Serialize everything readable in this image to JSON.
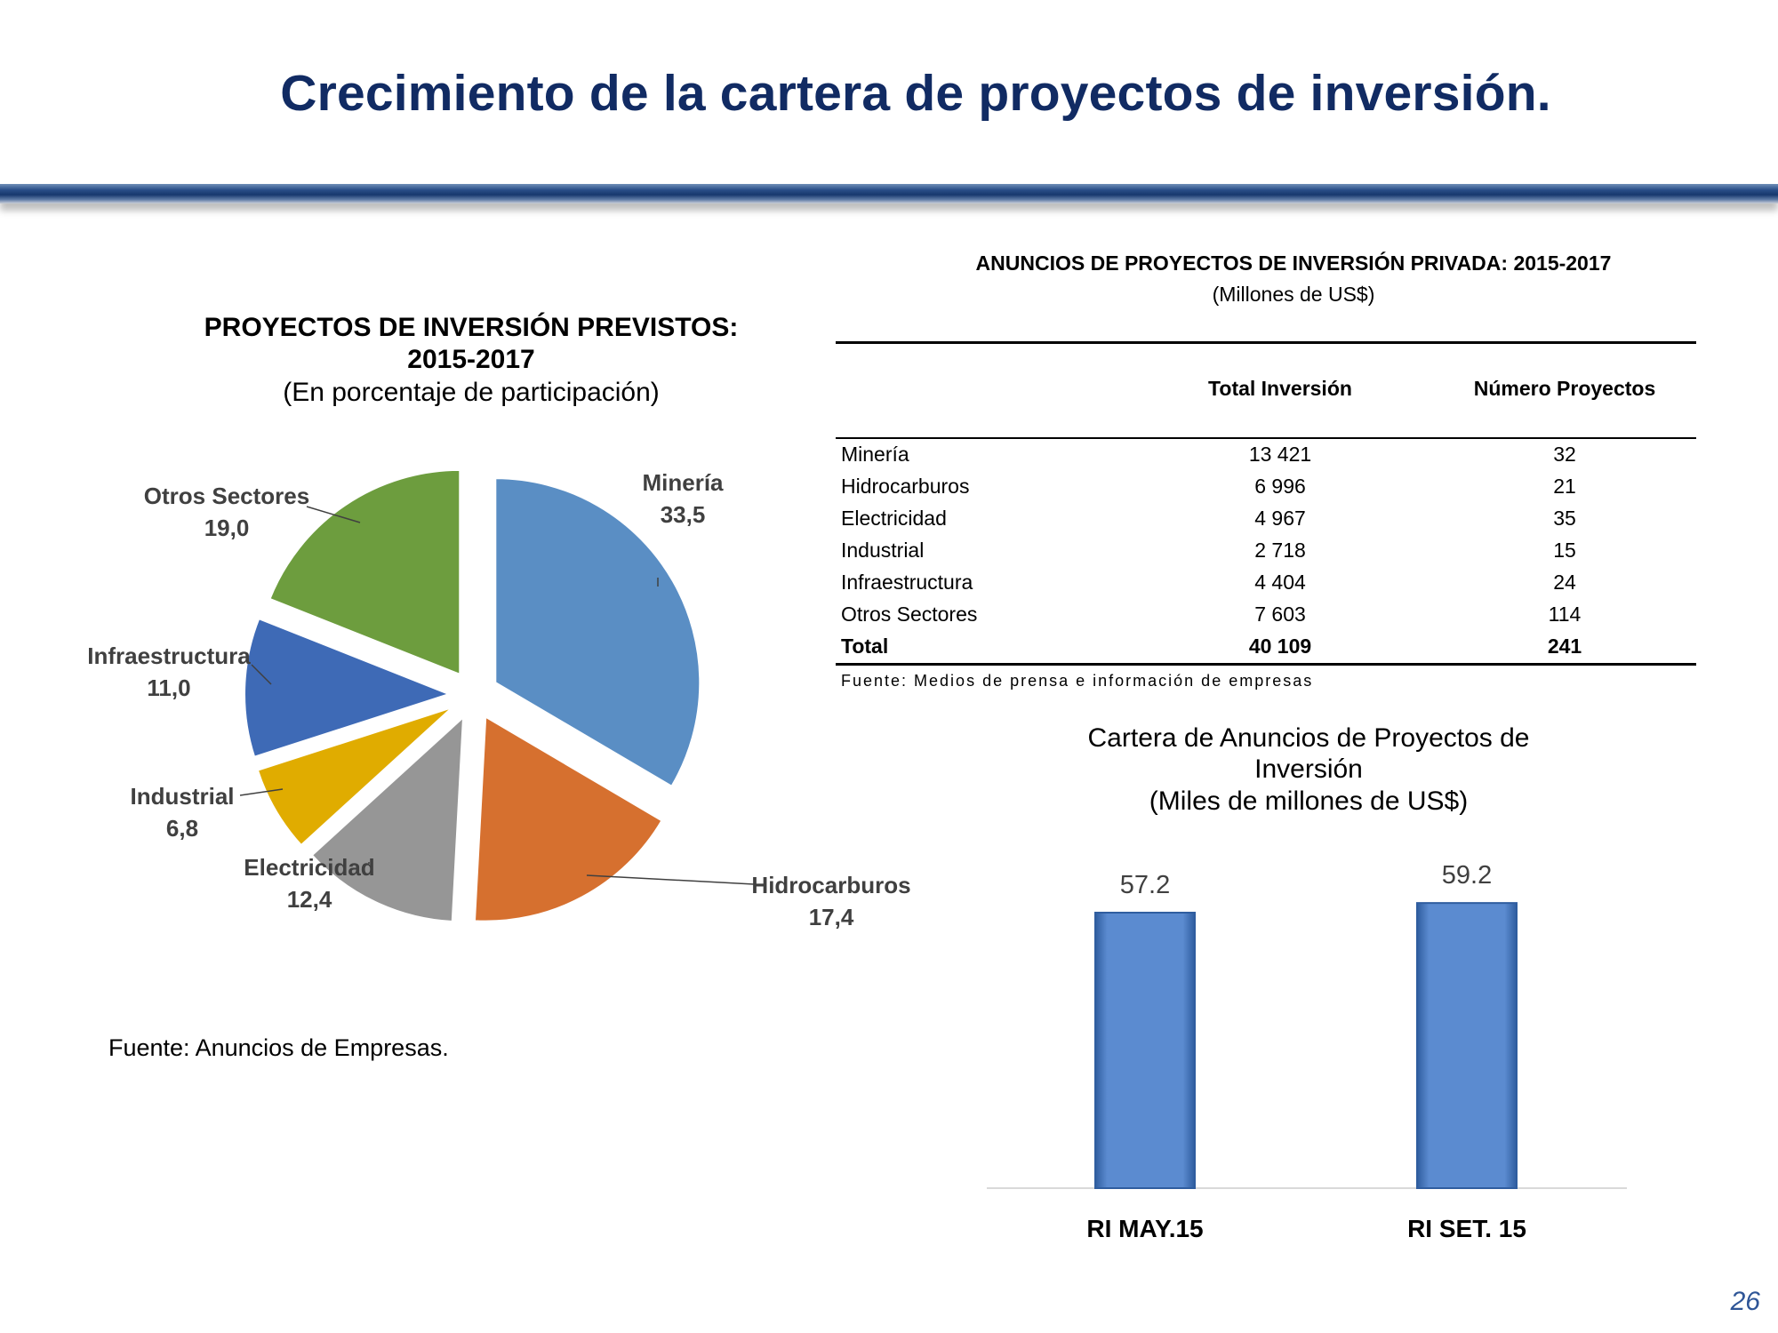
{
  "slide": {
    "title": "Crecimiento de la cartera de proyectos de inversión.",
    "page_number": "26"
  },
  "pie": {
    "title_line1": "PROYECTOS DE INVERSIÓN PREVISTOS:",
    "title_line2": "2015-2017",
    "subtitle": "(En porcentaje de participación)",
    "source": "Fuente: Anuncios de Empresas."
  },
  "table": {
    "title": "ANUNCIOS DE PROYECTOS DE INVERSIÓN PRIVADA: 2015-2017",
    "subtitle": "(Millones de US$)",
    "headers": [
      "",
      "Total Inversión",
      "Número  Proyectos"
    ],
    "rows": [
      [
        "Minería",
        "13 421",
        "32"
      ],
      [
        "Hidrocarburos",
        "6 996",
        "21"
      ],
      [
        "Electricidad",
        "4 967",
        "35"
      ],
      [
        "Industrial",
        "2 718",
        "15"
      ],
      [
        "Infraestructura",
        "4 404",
        "24"
      ],
      [
        "Otros Sectores",
        "7 603",
        "114"
      ]
    ],
    "total": [
      "Total",
      "40 109",
      "241"
    ],
    "source": "Fuente: Medios de prensa e información de empresas"
  },
  "bar": {
    "title_line1": "Cartera de Anuncios de Proyectos de",
    "title_line2": "Inversión",
    "subtitle": "(Miles de millones de US$)"
  },
  "chart_data": [
    {
      "type": "pie",
      "title": "PROYECTOS DE INVERSIÓN PREVISTOS: 2015-2017",
      "subtitle": "(En porcentaje de participación)",
      "slices": [
        {
          "label": "Minería",
          "value": 33.5,
          "value_label": "33,5",
          "color": "#5a8ec4"
        },
        {
          "label": "Hidrocarburos",
          "value": 17.4,
          "value_label": "17,4",
          "color": "#d6702f"
        },
        {
          "label": "Electricidad",
          "value": 12.4,
          "value_label": "12,4",
          "color": "#969696"
        },
        {
          "label": "Industrial",
          "value": 6.8,
          "value_label": "6,8",
          "color": "#e0ac00"
        },
        {
          "label": "Infraestructura",
          "value": 11.0,
          "value_label": "11,0",
          "color": "#3e6ab6"
        },
        {
          "label": "Otros Sectores",
          "value": 19.0,
          "value_label": "19,0",
          "color": "#6d9d3e"
        }
      ],
      "exploded": true
    },
    {
      "type": "bar",
      "title": "Cartera de Anuncios de Proyectos de Inversión",
      "subtitle": "(Miles de millones de US$)",
      "categories": [
        "RI MAY.15",
        "RI SET. 15"
      ],
      "values": [
        57.2,
        59.2
      ],
      "value_labels": [
        "57.2",
        "59.2"
      ],
      "color": "#5b8bd0"
    }
  ]
}
